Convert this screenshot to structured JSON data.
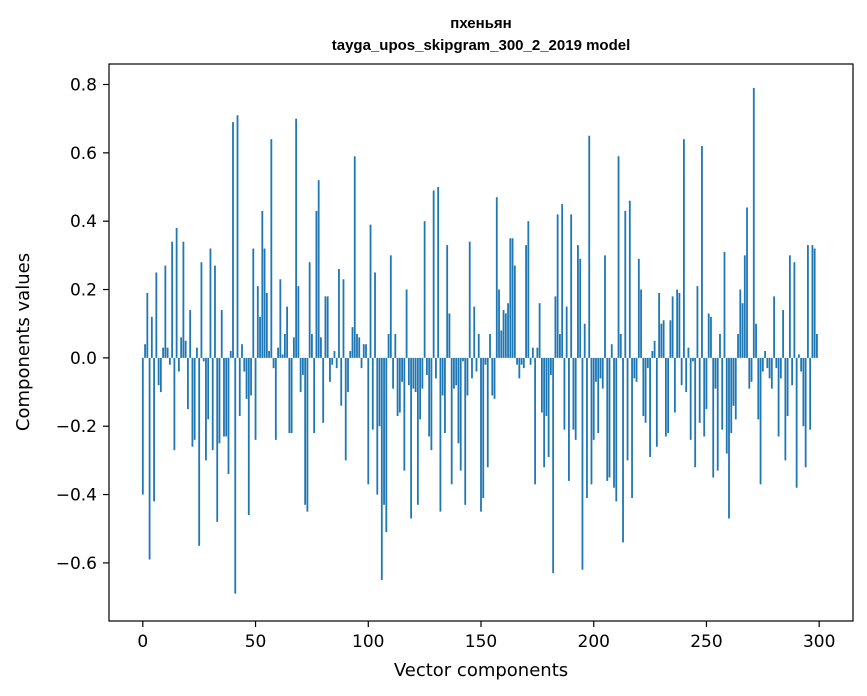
{
  "chart_data": {
    "type": "bar",
    "title": "пхеньян",
    "subtitle": "tayga_upos_skipgram_300_2_2019 model",
    "xlabel": "Vector components",
    "ylabel": "Components values",
    "xlim": [
      -15,
      315
    ],
    "ylim": [
      -0.77,
      0.86
    ],
    "xticks": [
      0,
      50,
      100,
      150,
      200,
      250,
      300
    ],
    "xtick_labels": [
      "0",
      "50",
      "100",
      "150",
      "200",
      "250",
      "300"
    ],
    "yticks": [
      -0.6,
      -0.4,
      -0.2,
      0.0,
      0.2,
      0.4,
      0.6,
      0.8
    ],
    "ytick_labels": [
      "−0.6",
      "−0.4",
      "−0.2",
      "0.0",
      "0.2",
      "0.4",
      "0.6",
      "0.8"
    ],
    "grid": false,
    "color": "#1f77b4",
    "values": [
      -0.4,
      0.04,
      0.19,
      -0.59,
      0.12,
      -0.42,
      0.25,
      -0.08,
      -0.1,
      0.03,
      0.27,
      0.03,
      -0.02,
      0.34,
      -0.27,
      0.38,
      -0.04,
      0.06,
      0.34,
      0.05,
      -0.15,
      0.14,
      -0.26,
      -0.24,
      0.03,
      -0.55,
      0.28,
      -0.01,
      -0.3,
      -0.18,
      0.32,
      -0.27,
      0.27,
      -0.48,
      -0.25,
      0.14,
      -0.23,
      -0.23,
      -0.34,
      0.02,
      0.69,
      -0.69,
      0.71,
      -0.17,
      0.04,
      -0.04,
      -0.12,
      -0.46,
      -0.11,
      0.32,
      -0.24,
      0.21,
      0.12,
      0.43,
      0.32,
      0.19,
      0.02,
      0.64,
      -0.03,
      -0.24,
      0.03,
      0.23,
      0.01,
      0.07,
      0.15,
      -0.22,
      -0.22,
      0.06,
      0.7,
      0.21,
      -0.1,
      -0.05,
      -0.43,
      -0.45,
      0.28,
      0.07,
      -0.22,
      0.43,
      0.52,
      0.06,
      -0.19,
      0.18,
      0.18,
      -0.07,
      -0.02,
      0.02,
      -0.03,
      0.26,
      -0.14,
      0.23,
      -0.3,
      -0.1,
      0.02,
      0.09,
      0.59,
      0.07,
      0.06,
      -0.03,
      0.04,
      0.04,
      -0.37,
      0.39,
      -0.21,
      0.25,
      -0.4,
      -0.2,
      -0.65,
      -0.43,
      -0.51,
      0.07,
      0.3,
      -0.09,
      0.07,
      -0.17,
      -0.16,
      -0.07,
      -0.33,
      0.2,
      -0.08,
      -0.47,
      -0.09,
      -0.1,
      -0.43,
      -0.18,
      -0.09,
      0.4,
      -0.05,
      -0.23,
      -0.27,
      0.49,
      -0.06,
      0.5,
      -0.45,
      -0.11,
      -0.22,
      0.33,
      0.13,
      -0.37,
      -0.09,
      -0.08,
      -0.25,
      -0.33,
      -0.01,
      -0.43,
      -0.11,
      0.34,
      -0.06,
      0.15,
      -0.04,
      0.07,
      -0.45,
      -0.41,
      -0.02,
      -0.32,
      0.07,
      -0.11,
      -0.12,
      0.47,
      0.2,
      0.08,
      0.14,
      0.13,
      0.16,
      0.35,
      0.35,
      0.27,
      -0.02,
      -0.06,
      -0.02,
      -0.03,
      0.33,
      0.4,
      -0.02,
      0.03,
      -0.37,
      0.03,
      0.16,
      -0.16,
      -0.32,
      -0.17,
      -0.29,
      -0.05,
      -0.63,
      0.18,
      0.42,
      0.07,
      0.45,
      -0.21,
      0.15,
      -0.36,
      0.42,
      -0.21,
      -0.24,
      0.33,
      0.29,
      -0.62,
      0.1,
      -0.41,
      0.65,
      -0.37,
      -0.24,
      -0.07,
      -0.22,
      -0.06,
      -0.09,
      0.3,
      -0.36,
      -0.35,
      0.04,
      -0.38,
      -0.42,
      0.59,
      0.07,
      -0.54,
      0.43,
      -0.3,
      0.46,
      -0.41,
      -0.06,
      -0.07,
      0.29,
      0.2,
      -0.17,
      -0.19,
      -0.03,
      -0.29,
      0.02,
      0.05,
      -0.26,
      0.19,
      0.1,
      0.11,
      -0.23,
      -0.22,
      0.11,
      0.18,
      -0.16,
      0.2,
      0.19,
      -0.08,
      0.64,
      -0.1,
      0.03,
      -0.24,
      -0.01,
      -0.32,
      0.21,
      -0.19,
      0.62,
      -0.23,
      -0.15,
      0.13,
      0.12,
      -0.35,
      -0.09,
      -0.33,
      0.07,
      -0.21,
      0.31,
      -0.28,
      -0.47,
      -0.22,
      -0.14,
      -0.18,
      0.07,
      0.2,
      0.16,
      0.3,
      0.44,
      -0.09,
      -0.07,
      0.79,
      0.1,
      -0.18,
      -0.37,
      -0.04,
      0.02,
      -0.03,
      -0.06,
      -0.09,
      0.18,
      -0.03,
      -0.23,
      -0.06,
      0.14,
      -0.3,
      -0.17,
      0.3,
      -0.08,
      0.28,
      -0.38,
      0.01,
      -0.04,
      -0.2,
      -0.32,
      0.33,
      -0.21,
      0.33,
      0.32,
      0.07
    ]
  }
}
